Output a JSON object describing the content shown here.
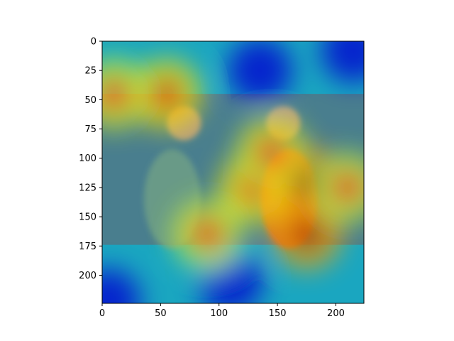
{
  "chart_data": {
    "type": "heatmap",
    "title": "",
    "xlabel": "",
    "ylabel": "",
    "xlim": [
      0,
      224
    ],
    "ylim": [
      224,
      0
    ],
    "xticks": [
      0,
      50,
      100,
      150,
      200
    ],
    "yticks": [
      0,
      25,
      50,
      75,
      100,
      125,
      150,
      175,
      200
    ],
    "colormap": "jet",
    "grid": false,
    "photo_overlay": {
      "x_range": [
        0,
        224
      ],
      "y_range": [
        45,
        174
      ],
      "people": [
        {
          "x": 60,
          "y": 110,
          "shirt": "#6f9f86"
        },
        {
          "x": 160,
          "y": 110,
          "shirt": "#e06020"
        }
      ]
    },
    "heat_hotspots": [
      {
        "x": 175,
        "y": 120,
        "intensity": 1.0
      },
      {
        "x": 175,
        "y": 165,
        "intensity": 0.9
      },
      {
        "x": 130,
        "y": 125,
        "intensity": 0.7
      },
      {
        "x": 145,
        "y": 95,
        "intensity": 0.65
      },
      {
        "x": 55,
        "y": 45,
        "intensity": 0.75
      },
      {
        "x": 10,
        "y": 45,
        "intensity": 0.65
      },
      {
        "x": 90,
        "y": 165,
        "intensity": 0.6
      },
      {
        "x": 210,
        "y": 125,
        "intensity": 0.6
      }
    ],
    "heat_coldspots": [
      {
        "x": 5,
        "y": 222
      },
      {
        "x": 110,
        "y": 205
      },
      {
        "x": 215,
        "y": 8
      },
      {
        "x": 135,
        "y": 25
      }
    ]
  }
}
